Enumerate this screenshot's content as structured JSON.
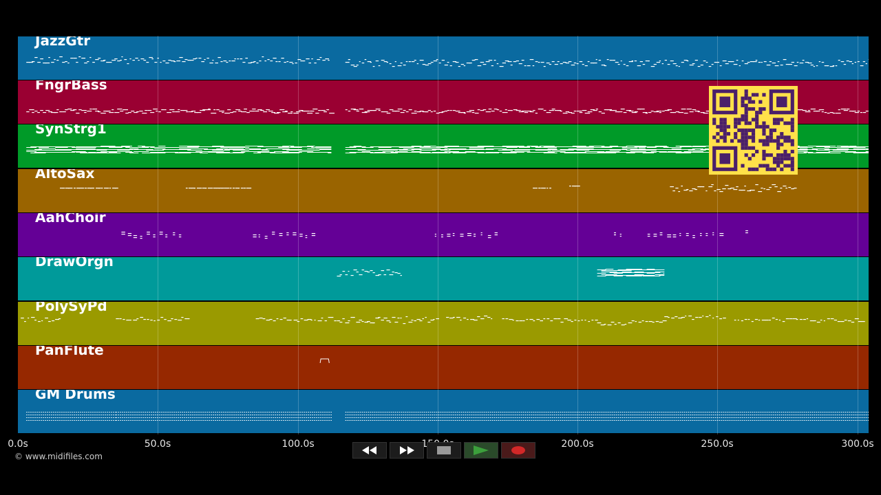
{
  "tracks": [
    {
      "name": "JazzGtr",
      "color": "#0a6aa0"
    },
    {
      "name": "FngrBass",
      "color": "#9a0032"
    },
    {
      "name": "SynStrg1",
      "color": "#009a28"
    },
    {
      "name": "AltoSax",
      "color": "#9a6400"
    },
    {
      "name": "AahChoir",
      "color": "#640096"
    },
    {
      "name": "DrawOrgn",
      "color": "#009a9a"
    },
    {
      "name": "PolySyPd",
      "color": "#9a9a00"
    },
    {
      "name": "PanFlute",
      "color": "#962800"
    },
    {
      "name": "GM Drums",
      "color": "#0a6aa0"
    }
  ],
  "timeline": {
    "ticks": [
      "0.0s",
      "50.0s",
      "100.0s",
      "150.0s",
      "200.0s",
      "250.0s",
      "300.0s"
    ],
    "tick_values_s": [
      0,
      50,
      100,
      150,
      200,
      250,
      300
    ]
  },
  "copyright": "© www.midifiles.com",
  "transport": {
    "buttons": [
      {
        "name": "rewind-button",
        "icon": "rewind-icon",
        "color": "#ffffff"
      },
      {
        "name": "fast-forward-button",
        "icon": "fast-forward-icon",
        "color": "#ffffff"
      },
      {
        "name": "stop-button",
        "icon": "stop-icon",
        "color": "#9a9a9a"
      },
      {
        "name": "play-button",
        "icon": "play-icon",
        "color": "#3ca03c"
      },
      {
        "name": "record-button",
        "icon": "record-icon",
        "color": "#d22828"
      }
    ]
  },
  "overlay": {
    "qr_code": "qr-code",
    "color": "#ffe14a",
    "dark": "#4a1f6a"
  }
}
